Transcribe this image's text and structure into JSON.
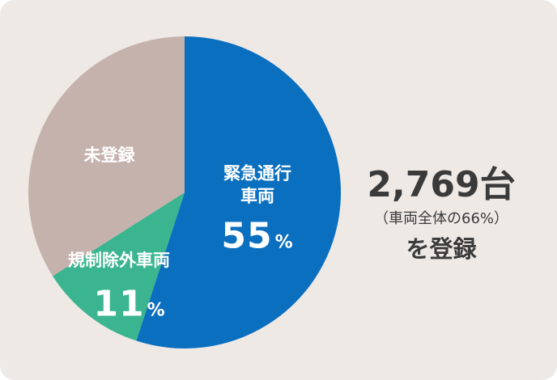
{
  "chart_data": {
    "type": "pie",
    "categories": [
      "緊急通行車両",
      "規制除外車両",
      "未登録"
    ],
    "values": [
      55,
      11,
      34
    ],
    "unit": "%",
    "colors": [
      "#0b6fc0",
      "#3bb590",
      "#c6b2ad"
    ],
    "annotations": [
      "2,769台",
      "（車両全体の66%）",
      "を登録"
    ]
  }
}
